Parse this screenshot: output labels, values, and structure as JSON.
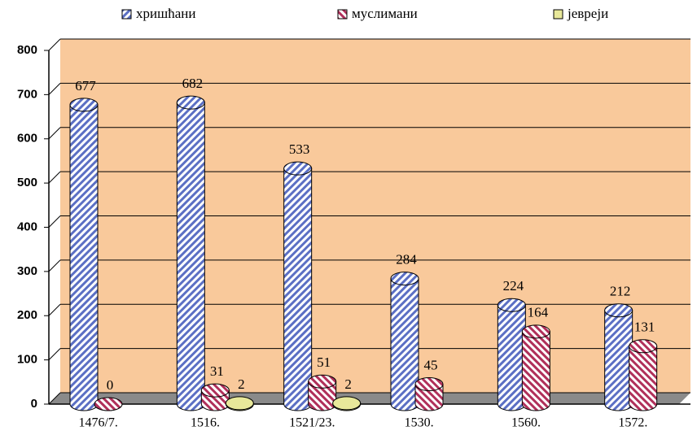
{
  "chart_data": {
    "type": "bar",
    "categories": [
      "1476/7.",
      "1516.",
      "1521/23.",
      "1530.",
      "1560.",
      "1572."
    ],
    "series": [
      {
        "name": "хришћани",
        "color": "#5b6fc4",
        "values": [
          677,
          682,
          533,
          284,
          224,
          212
        ]
      },
      {
        "name": "муслимани",
        "color": "#b0305a",
        "values": [
          0,
          31,
          51,
          45,
          164,
          131
        ]
      },
      {
        "name": "јевреји",
        "color": "#e8e89a",
        "values": [
          null,
          2,
          2,
          null,
          null,
          null
        ]
      }
    ],
    "ylim": [
      0,
      800
    ],
    "yticks": [
      0,
      100,
      200,
      300,
      400,
      500,
      600,
      700,
      800
    ],
    "grid": true,
    "legend": "top"
  }
}
